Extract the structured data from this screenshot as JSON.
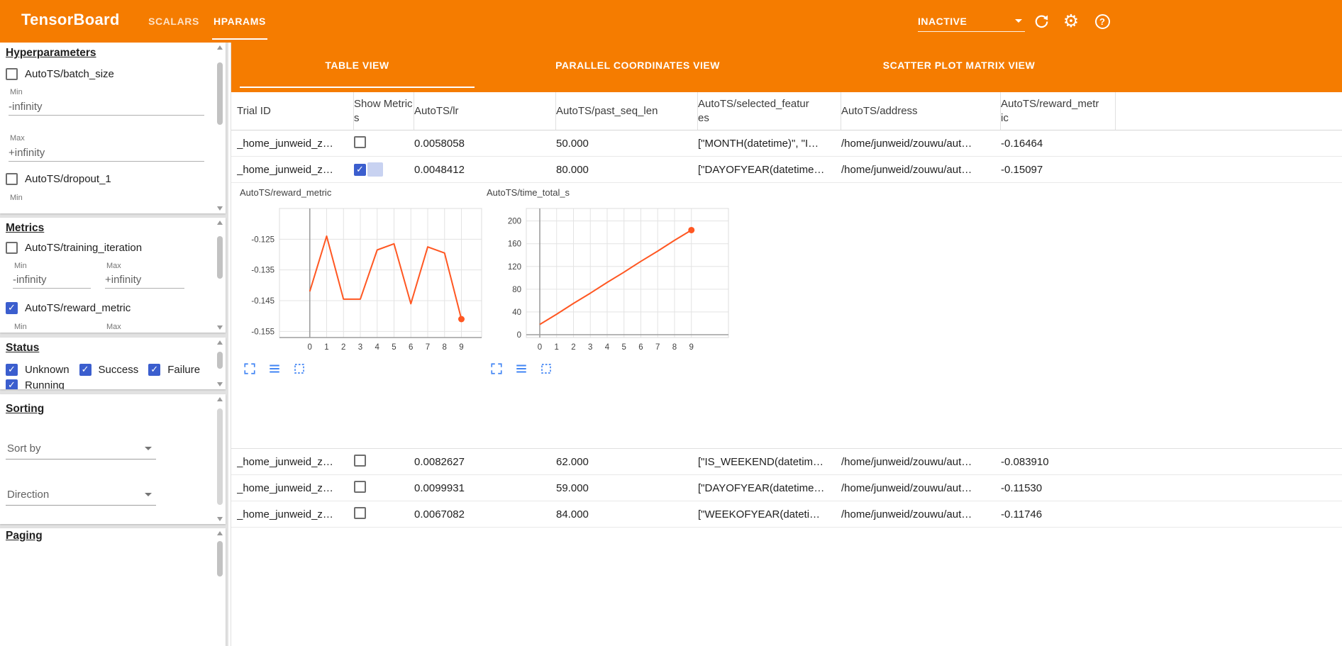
{
  "colors": {
    "header_bg": "#f57c00",
    "accent": "#3b5ece",
    "chart_line": "#ff5722",
    "icon_blue": "#4285f4",
    "tab_underline": "#ffffff"
  },
  "icons": {
    "settings_glyph": "⚙",
    "help_glyph": "?",
    "check_glyph": "✓"
  },
  "header": {
    "app_title": "TensorBoard",
    "nav_tabs": [
      {
        "label": "SCALARS",
        "active": false
      },
      {
        "label": "HPARAMS",
        "active": true
      }
    ],
    "run_status_dropdown": {
      "value": "INACTIVE"
    }
  },
  "sidebar": {
    "sections": {
      "hyperparameters": {
        "title": "Hyperparameters",
        "items": [
          {
            "label": "AutoTS/batch_size",
            "checked": false,
            "min_label": "Min",
            "min_value": "-infinity",
            "max_label": "Max",
            "max_value": "+infinity"
          },
          {
            "label": "AutoTS/dropout_1",
            "checked": false,
            "min_label": "Min"
          }
        ]
      },
      "metrics": {
        "title": "Metrics",
        "items": [
          {
            "label": "AutoTS/training_iteration",
            "checked": false,
            "min_label": "Min",
            "min_value": "-infinity",
            "max_label": "Max",
            "max_value": "+infinity"
          },
          {
            "label": "AutoTS/reward_metric",
            "checked": true,
            "min_label": "Min",
            "max_label": "Max"
          }
        ]
      },
      "status": {
        "title": "Status",
        "items": [
          {
            "label": "Unknown",
            "checked": true
          },
          {
            "label": "Success",
            "checked": true
          },
          {
            "label": "Failure",
            "checked": true
          },
          {
            "label": "Running",
            "checked": true
          }
        ]
      },
      "sorting": {
        "title": "Sorting",
        "sort_by_placeholder": "Sort by",
        "direction_placeholder": "Direction"
      },
      "paging": {
        "title": "Paging"
      }
    }
  },
  "main": {
    "view_tabs": [
      {
        "label": "TABLE VIEW",
        "active": true
      },
      {
        "label": "PARALLEL COORDINATES VIEW",
        "active": false
      },
      {
        "label": "SCATTER PLOT MATRIX VIEW",
        "active": false
      }
    ],
    "table": {
      "columns": [
        "Trial ID",
        "Show Metrics",
        "AutoTS/lr",
        "AutoTS/past_seq_len",
        "AutoTS/selected_features",
        "AutoTS/address",
        "AutoTS/reward_metric"
      ],
      "rows": [
        {
          "trial_id": "_home_junweid_z…",
          "show_metrics": false,
          "lr": "0.0058058",
          "past_seq_len": "50.000",
          "selected_features": "[\"MONTH(datetime)\", \"I…",
          "address": "/home/junweid/zouwu/aut…",
          "reward_metric": "-0.16464"
        },
        {
          "trial_id": "_home_junweid_z…",
          "show_metrics": true,
          "lr": "0.0048412",
          "past_seq_len": "80.000",
          "selected_features": "[\"DAYOFYEAR(datetime…",
          "address": "/home/junweid/zouwu/aut…",
          "reward_metric": "-0.15097"
        },
        {
          "trial_id": "_home_junweid_z…",
          "show_metrics": false,
          "lr": "0.0082627",
          "past_seq_len": "62.000",
          "selected_features": "[\"IS_WEEKEND(datetim…",
          "address": "/home/junweid/zouwu/aut…",
          "reward_metric": "-0.083910"
        },
        {
          "trial_id": "_home_junweid_z…",
          "show_metrics": false,
          "lr": "0.0099931",
          "past_seq_len": "59.000",
          "selected_features": "[\"DAYOFYEAR(datetime…",
          "address": "/home/junweid/zouwu/aut…",
          "reward_metric": "-0.11530"
        },
        {
          "trial_id": "_home_junweid_z…",
          "show_metrics": false,
          "lr": "0.0067082",
          "past_seq_len": "84.000",
          "selected_features": "[\"WEEKOFYEAR(dateti…",
          "address": "/home/junweid/zouwu/aut…",
          "reward_metric": "-0.11746"
        }
      ]
    }
  },
  "chart_data": [
    {
      "type": "line",
      "title": "AutoTS/reward_metric",
      "x": [
        0,
        1,
        2,
        3,
        4,
        5,
        6,
        7,
        8,
        9
      ],
      "values": [
        -0.142,
        -0.124,
        -0.1445,
        -0.1445,
        -0.1285,
        -0.1265,
        -0.146,
        -0.1275,
        -0.1295,
        -0.151
      ],
      "xlim": [
        -1.8,
        10.2
      ],
      "ylim": [
        -0.157,
        -0.115
      ],
      "xticks": [
        0,
        1,
        2,
        3,
        4,
        5,
        6,
        7,
        8,
        9
      ],
      "yticks": [
        -0.125,
        -0.135,
        -0.145,
        -0.155
      ],
      "zero_axis": false,
      "end_dot": true,
      "grid": true,
      "legend": "none"
    },
    {
      "type": "line",
      "title": "AutoTS/time_total_s",
      "x": [
        0,
        1,
        2,
        3,
        4,
        5,
        6,
        7,
        8,
        9
      ],
      "values": [
        18,
        36,
        55,
        73,
        92,
        110,
        129,
        147,
        166,
        184
      ],
      "xlim": [
        -0.8,
        11.2
      ],
      "ylim": [
        -5,
        222
      ],
      "xticks": [
        0,
        1,
        2,
        3,
        4,
        5,
        6,
        7,
        8,
        9
      ],
      "yticks": [
        0,
        40,
        80,
        120,
        160,
        200
      ],
      "zero_axis": true,
      "end_dot": true,
      "grid": true,
      "legend": "none"
    }
  ]
}
